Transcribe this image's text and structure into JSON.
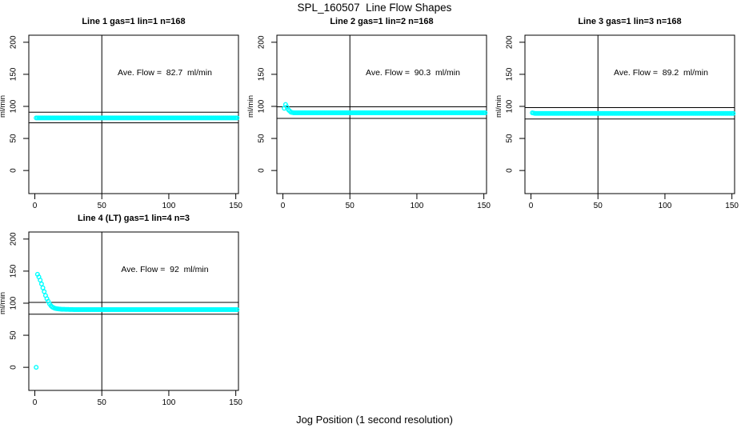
{
  "figure": {
    "title": "SPL_160507  Line Flow Shapes",
    "xlabel": "Jog Position (1 second resolution)",
    "background": "#FFFFFF"
  },
  "axes": {
    "ylabel": "ml/min",
    "x_ticks": [
      0,
      50,
      100,
      150
    ],
    "y_ticks": [
      0,
      50,
      100,
      150,
      200
    ],
    "xlim": [
      -4.5,
      152
    ],
    "ylim": [
      -36,
      211
    ],
    "vline_x": 50
  },
  "style": {
    "point_color": "#00FFFF",
    "line_color": "#000000",
    "text_color": "#000000"
  },
  "chart_data": [
    {
      "type": "scatter",
      "title": "Line 1 gas=1 lin=1 n=168",
      "n": 168,
      "ave_flow": 82.7,
      "annotation": "Ave. Flow =  82.7  ml/min",
      "ref_lines": [
        90.97,
        74.43
      ],
      "x_range": [
        1,
        151
      ],
      "keypoints": [
        [
          1,
          82
        ],
        [
          151,
          82
        ]
      ]
    },
    {
      "type": "scatter",
      "title": "Line 2 gas=1 lin=2 n=168",
      "n": 168,
      "ave_flow": 90.3,
      "annotation": "Ave. Flow =  90.3  ml/min",
      "ref_lines": [
        99.33,
        81.27
      ],
      "x_range": [
        1,
        151
      ],
      "keypoints": [
        [
          1,
          97
        ],
        [
          2,
          103
        ],
        [
          3,
          99
        ],
        [
          4,
          95
        ],
        [
          5,
          93
        ],
        [
          6,
          91
        ],
        [
          8,
          90
        ],
        [
          151,
          90
        ]
      ]
    },
    {
      "type": "scatter",
      "title": "Line 3 gas=1 lin=3 n=168",
      "n": 168,
      "ave_flow": 89.2,
      "annotation": "Ave. Flow =  89.2  ml/min",
      "ref_lines": [
        98.12,
        80.28
      ],
      "x_range": [
        1,
        151
      ],
      "keypoints": [
        [
          1,
          90
        ],
        [
          3,
          89
        ],
        [
          151,
          89
        ]
      ]
    },
    {
      "type": "scatter",
      "title": "Line 4 (LT) gas=1 lin=4 n=3",
      "n": 3,
      "ave_flow": 92,
      "annotation": "Ave. Flow =  92  ml/min",
      "ref_lines": [
        101.2,
        82.8
      ],
      "x_range": [
        1,
        151
      ],
      "keypoints": [
        [
          1,
          0
        ],
        [
          2,
          145
        ],
        [
          3,
          141
        ],
        [
          4,
          136
        ],
        [
          5,
          130
        ],
        [
          6,
          124
        ],
        [
          7,
          118
        ],
        [
          8,
          112
        ],
        [
          9,
          107
        ],
        [
          10,
          103
        ],
        [
          11,
          99
        ],
        [
          12,
          96
        ],
        [
          13,
          94
        ],
        [
          14,
          93
        ],
        [
          15,
          92
        ],
        [
          16,
          91.5
        ],
        [
          18,
          91
        ],
        [
          20,
          90.5
        ],
        [
          30,
          90
        ],
        [
          151,
          90
        ]
      ]
    }
  ]
}
